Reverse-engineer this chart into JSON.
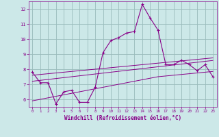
{
  "xlabel": "Windchill (Refroidissement éolien,°C)",
  "bg_color": "#cce8e8",
  "line_color": "#880088",
  "grid_color": "#99bbbb",
  "x_hours": [
    0,
    1,
    2,
    3,
    4,
    5,
    6,
    7,
    8,
    9,
    10,
    11,
    12,
    13,
    14,
    15,
    16,
    17,
    18,
    19,
    20,
    21,
    22,
    23
  ],
  "windchill": [
    7.8,
    7.1,
    7.1,
    5.7,
    6.5,
    6.6,
    5.8,
    5.8,
    6.8,
    9.1,
    9.9,
    10.1,
    10.4,
    10.5,
    12.3,
    11.4,
    10.6,
    8.3,
    8.3,
    8.6,
    8.3,
    7.9,
    8.3,
    7.5
  ],
  "trend_upper": [
    7.6,
    7.65,
    7.7,
    7.75,
    7.8,
    7.85,
    7.9,
    7.95,
    8.0,
    8.05,
    8.1,
    8.15,
    8.2,
    8.25,
    8.3,
    8.35,
    8.4,
    8.45,
    8.5,
    8.55,
    8.6,
    8.65,
    8.7,
    8.75
  ],
  "trend_mid": [
    7.2,
    7.26,
    7.32,
    7.38,
    7.44,
    7.5,
    7.56,
    7.62,
    7.68,
    7.74,
    7.8,
    7.86,
    7.92,
    7.98,
    8.04,
    8.1,
    8.16,
    8.22,
    8.28,
    8.34,
    8.4,
    8.46,
    8.52,
    8.58
  ],
  "trend_lower": [
    5.9,
    6.0,
    6.1,
    6.2,
    6.3,
    6.4,
    6.5,
    6.6,
    6.7,
    6.8,
    6.9,
    7.0,
    7.1,
    7.2,
    7.3,
    7.4,
    7.5,
    7.55,
    7.6,
    7.65,
    7.7,
    7.75,
    7.8,
    7.85
  ],
  "ylim": [
    5.5,
    12.5
  ],
  "yticks": [
    6,
    7,
    8,
    9,
    10,
    11,
    12
  ],
  "xlim": [
    -0.5,
    23.5
  ],
  "xticks": [
    0,
    1,
    2,
    3,
    4,
    5,
    6,
    7,
    8,
    9,
    10,
    11,
    12,
    13,
    14,
    15,
    16,
    17,
    18,
    19,
    20,
    21,
    22,
    23
  ]
}
